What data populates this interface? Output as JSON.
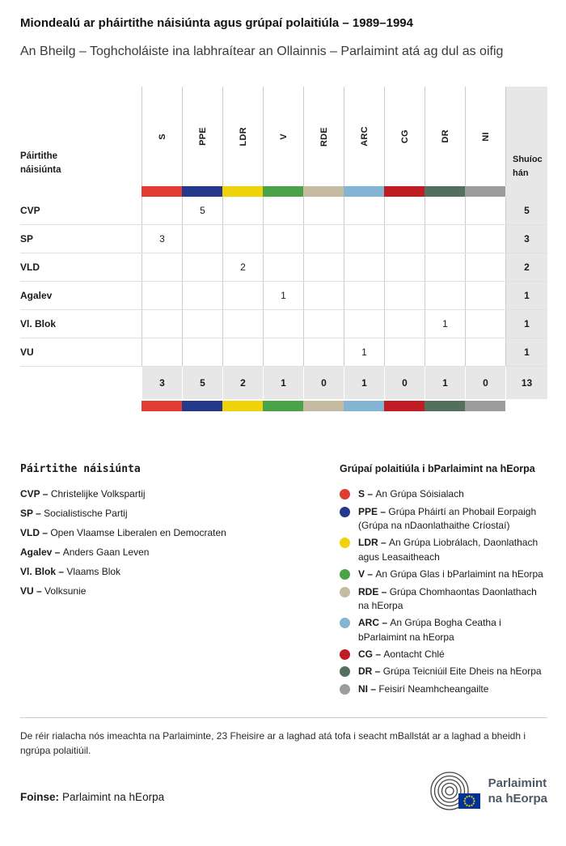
{
  "header": {
    "title": "Miondealú ar pháirtithe náisiúnta agus grúpaí polaitiúla – 1989–1994",
    "subtitle": "An Bheilg – Toghcholáiste ina labhraítear an Ollainnis – Parlaimint atá ag dul as oifig"
  },
  "chart_data": {
    "type": "table",
    "title": "Miondealú ar pháirtithe náisiúnta agus grúpaí polaitiúla – 1989–1994",
    "subtitle": "An Bheilg – Toghcholáiste ina labhraítear an Ollainnis – Parlaimint atá ag dul as oifig",
    "row_header": "Páirtithe náisiúnta",
    "seats_header": "Shuíochán",
    "columns": [
      "S",
      "PPE",
      "LDR",
      "V",
      "RDE",
      "ARC",
      "CG",
      "DR",
      "NI"
    ],
    "column_colors": [
      "#e13c31",
      "#24388c",
      "#f0d20b",
      "#4ba347",
      "#c4bba1",
      "#84b4d4",
      "#bf1c24",
      "#53705f",
      "#9c9c9b"
    ],
    "rows": [
      {
        "party": "CVP",
        "values": [
          "",
          "5",
          "",
          "",
          "",
          "",
          "",
          "",
          ""
        ],
        "total": "5"
      },
      {
        "party": "SP",
        "values": [
          "3",
          "",
          "",
          "",
          "",
          "",
          "",
          "",
          ""
        ],
        "total": "3"
      },
      {
        "party": "VLD",
        "values": [
          "",
          "",
          "2",
          "",
          "",
          "",
          "",
          "",
          ""
        ],
        "total": "2"
      },
      {
        "party": "Agalev",
        "values": [
          "",
          "",
          "",
          "1",
          "",
          "",
          "",
          "",
          ""
        ],
        "total": "1"
      },
      {
        "party": "Vl. Blok",
        "values": [
          "",
          "",
          "",
          "",
          "",
          "",
          "",
          "1",
          ""
        ],
        "total": "1"
      },
      {
        "party": "VU",
        "values": [
          "",
          "",
          "",
          "",
          "",
          "1",
          "",
          "",
          ""
        ],
        "total": "1"
      }
    ],
    "totals": {
      "values": [
        "3",
        "5",
        "2",
        "1",
        "0",
        "1",
        "0",
        "1",
        "0"
      ],
      "total": "13"
    }
  },
  "legend_parties": {
    "title": "Páirtithe náisiúnta",
    "items": [
      {
        "label": "CVP –",
        "name": "Christelijke Volkspartij"
      },
      {
        "label": "SP –",
        "name": "Socialistische Partij"
      },
      {
        "label": "VLD –",
        "name": "Open Vlaamse Liberalen en Democraten"
      },
      {
        "label": "Agalev –",
        "name": "Anders Gaan Leven"
      },
      {
        "label": "Vl. Blok –",
        "name": "Vlaams Blok"
      },
      {
        "label": "VU –",
        "name": "Volksunie"
      }
    ]
  },
  "legend_groups": {
    "title": "Grúpaí polaitiúla i bParlaimint na hEorpa",
    "items": [
      {
        "code": "S –",
        "name": "An Grúpa Sóisialach",
        "color": "#e13c31"
      },
      {
        "code": "PPE –",
        "name": "Grúpa Pháirtí an Phobail Eorpaigh (Grúpa na nDaonlathaithe Críostaí)",
        "color": "#24388c"
      },
      {
        "code": "LDR –",
        "name": "An Grúpa Liobrálach, Daonlathach agus Leasaitheach",
        "color": "#f0d20b"
      },
      {
        "code": "V –",
        "name": "An Grúpa Glas i bParlaimint na hEorpa",
        "color": "#4ba347"
      },
      {
        "code": "RDE –",
        "name": "Grúpa Chomhaontas Daonlathach na hEorpa",
        "color": "#c4bba1"
      },
      {
        "code": "ARC –",
        "name": "An Grúpa Bogha Ceatha i bParlaimint na hEorpa",
        "color": "#84b4d4"
      },
      {
        "code": "CG –",
        "name": "Aontacht Chlé",
        "color": "#bf1c24"
      },
      {
        "code": "DR –",
        "name": "Grúpa Teicniúil Eite Dheis na hEorpa",
        "color": "#53705f"
      },
      {
        "code": "NI –",
        "name": "Feisirí Neamhcheangailte",
        "color": "#9c9c9b"
      }
    ]
  },
  "footer": {
    "note": "De réir rialacha nós imeachta na Parlaiminte, 23 Fheisire ar a laghad atá tofa i seacht mBallstát ar a laghad a bheidh i ngrúpa polaitiúil.",
    "source_label": "Foinse:",
    "source_value": "Parlaimint na hEorpa",
    "logo_line1": "Parlaimint",
    "logo_line2": "na hEorpa"
  }
}
